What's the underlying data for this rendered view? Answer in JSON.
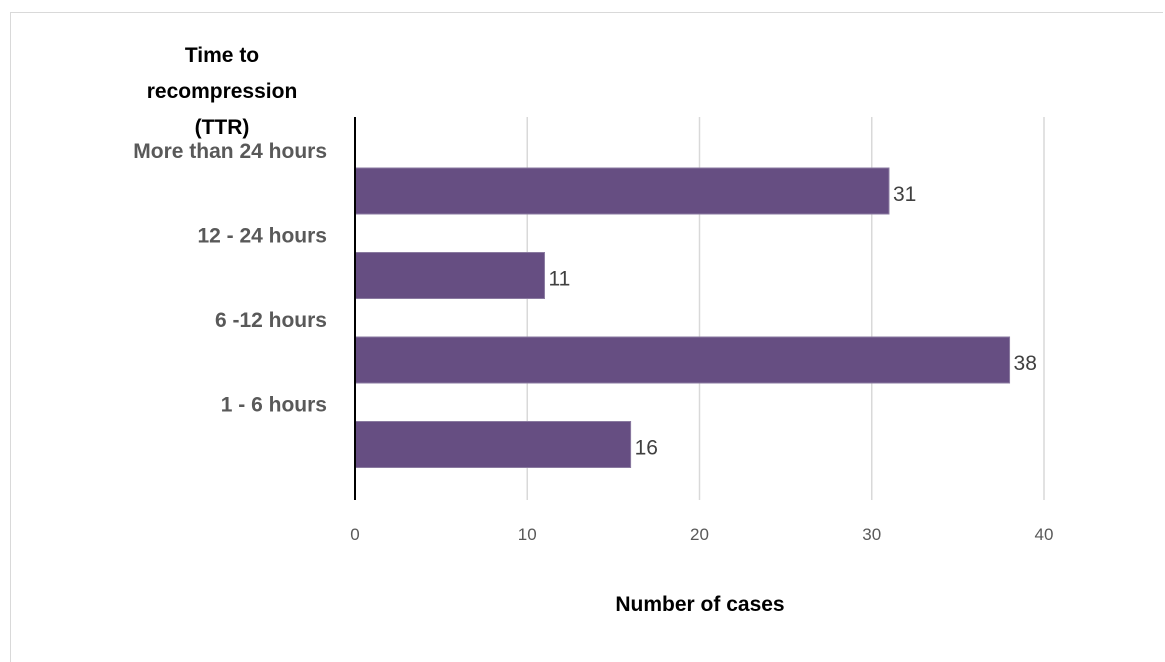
{
  "chart_data": {
    "type": "bar",
    "orientation": "horizontal",
    "categories": [
      "More than 24 hours",
      "12 - 24 hours",
      "6 -12 hours",
      "1 - 6 hours"
    ],
    "values": [
      31,
      11,
      38,
      16
    ],
    "data_labels": [
      "31",
      "11",
      "38",
      "16"
    ],
    "ylabel_lines": [
      "Time to",
      "recompression",
      "(TTR)"
    ],
    "xlabel": "Number of cases",
    "xticks": [
      "0",
      "10",
      "20",
      "30",
      "40"
    ],
    "xlim": [
      0,
      40
    ],
    "grid": true,
    "bar_color": "#664e82",
    "legend": "none"
  }
}
